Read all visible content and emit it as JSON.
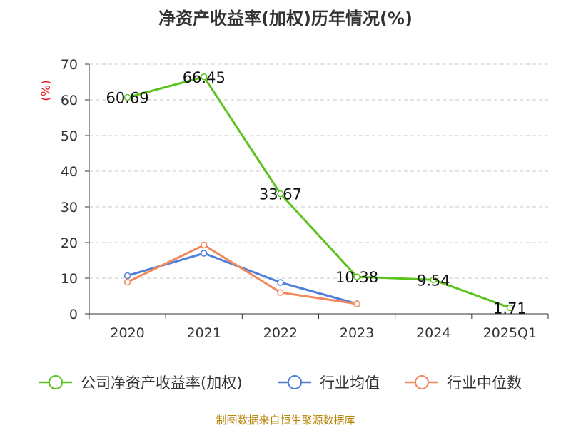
{
  "title": "净资产收益率(加权)历年情况(%)",
  "footer": "制图数据来自恒生聚源数据库",
  "chart_data": {
    "type": "line",
    "title": "净资产收益率(加权)历年情况(%)",
    "ylabel": "(%)",
    "xlabel": "",
    "categories": [
      "2020",
      "2021",
      "2022",
      "2023",
      "2024",
      "2025Q1"
    ],
    "ylim": [
      0,
      70
    ],
    "yticks": [
      0,
      10,
      20,
      30,
      40,
      50,
      60,
      70
    ],
    "grid": "horizontal-dashed",
    "legend_position": "bottom",
    "series": [
      {
        "name": "公司净资产收益率(加权)",
        "color": "#5cc21f",
        "values": [
          60.69,
          66.45,
          33.67,
          10.38,
          9.54,
          1.71
        ],
        "labels": [
          "60.69",
          "66.45",
          "33.67",
          "10.38",
          "9.54",
          "1.71"
        ]
      },
      {
        "name": "行业均值",
        "color": "#4f7fd8",
        "values": [
          10.7,
          17.0,
          8.8,
          2.8,
          null,
          null
        ]
      },
      {
        "name": "行业中位数",
        "color": "#f08a5d",
        "values": [
          8.9,
          19.3,
          6.0,
          2.8,
          null,
          null
        ]
      }
    ]
  }
}
